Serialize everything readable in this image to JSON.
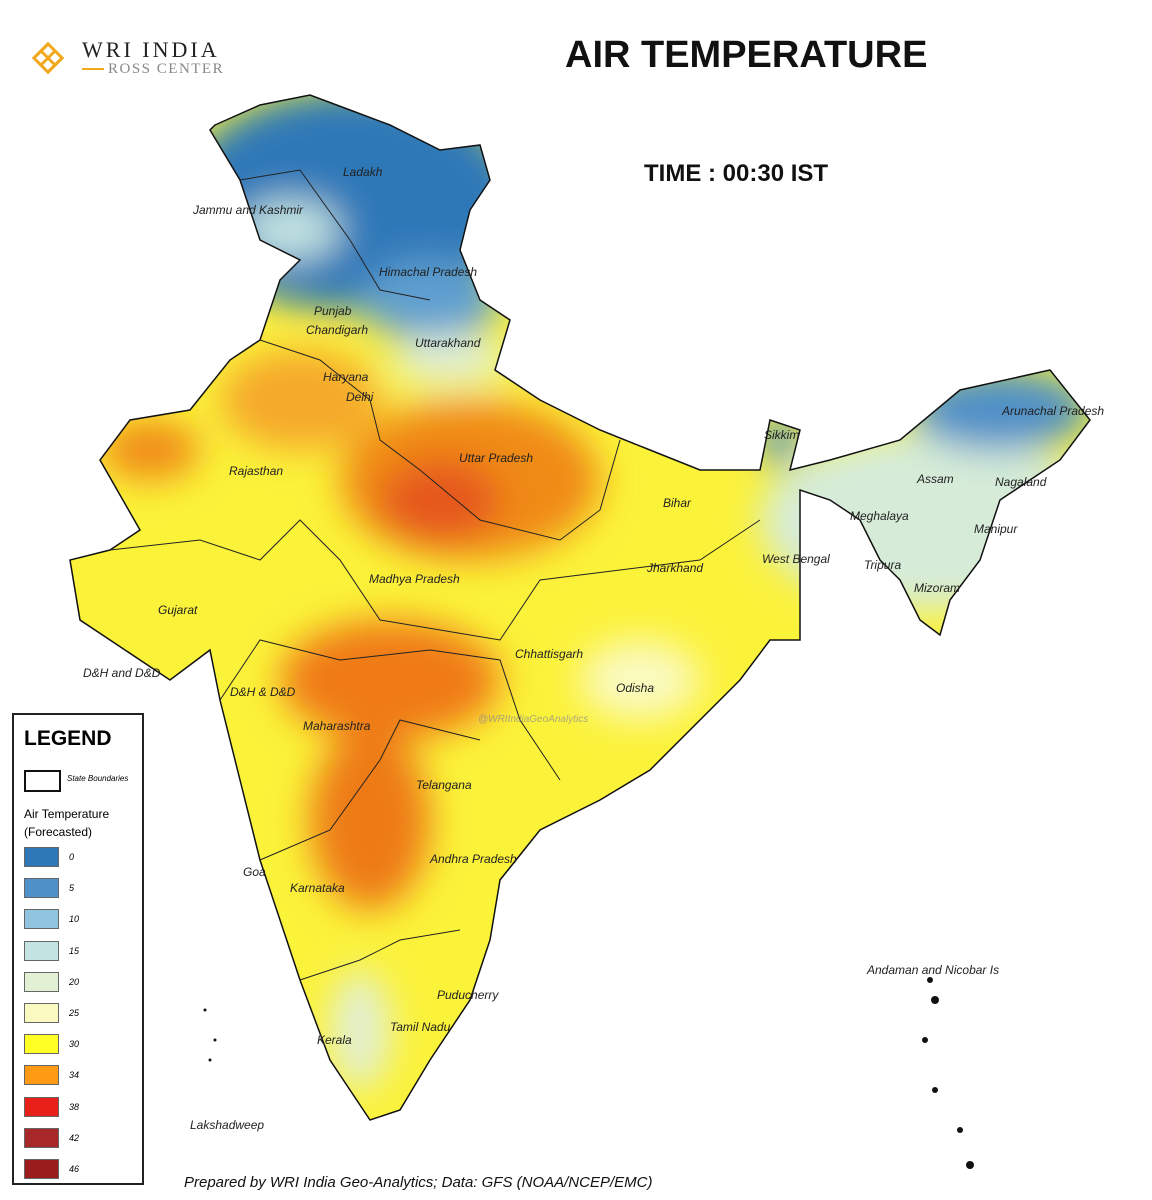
{
  "logo": {
    "main": "WRI INDIA",
    "sub": "ROSS CENTER",
    "accent": "#f2a81d"
  },
  "title": "AIR TEMPERATURE",
  "time": "TIME : 00:30 IST",
  "watermark": "@WRIIndiaGeoAnalytics",
  "states": [
    "Ladakh",
    "Jammu and Kashmir",
    "Himachal Pradesh",
    "Punjab",
    "Chandigarh",
    "Uttarakhand",
    "Haryana",
    "Delhi",
    "Uttar Pradesh",
    "Rajasthan",
    "Sikkim",
    "Arunachal Pradesh",
    "Assam",
    "Nagaland",
    "Meghalaya",
    "Manipur",
    "Bihar",
    "Tripura",
    "Mizoram",
    "West Bengal",
    "Jharkhand",
    "Madhya Pradesh",
    "Gujarat",
    "D&H and D&D",
    "D&H & D&D",
    "Chhattisgarh",
    "Odisha",
    "Maharashtra",
    "Telangana",
    "Andhra Pradesh",
    "Goa",
    "Karnataka",
    "Andaman and Nicobar Is",
    "Puducherry",
    "Tamil Nadu",
    "Kerala",
    "Lakshadweep"
  ],
  "legend": {
    "title": "LEGEND",
    "boundary_label": "State Boundaries",
    "scale_title": "Air Temperature (Forecasted)",
    "items": [
      {
        "value": "0",
        "color": "#2e78b8"
      },
      {
        "value": "5",
        "color": "#4f90c8"
      },
      {
        "value": "10",
        "color": "#91c4df"
      },
      {
        "value": "15",
        "color": "#c3e4e2"
      },
      {
        "value": "20",
        "color": "#e2f0d4"
      },
      {
        "value": "25",
        "color": "#fafac0"
      },
      {
        "value": "30",
        "color": "#ffff26"
      },
      {
        "value": "34",
        "color": "#ff9a14"
      },
      {
        "value": "38",
        "color": "#e8201a"
      },
      {
        "value": "42",
        "color": "#a8282a"
      },
      {
        "value": "46",
        "color": "#9a1c1c"
      }
    ]
  },
  "footer": "Prepared by WRI India Geo-Analytics; Data: GFS (NOAA/NCEP/EMC)"
}
